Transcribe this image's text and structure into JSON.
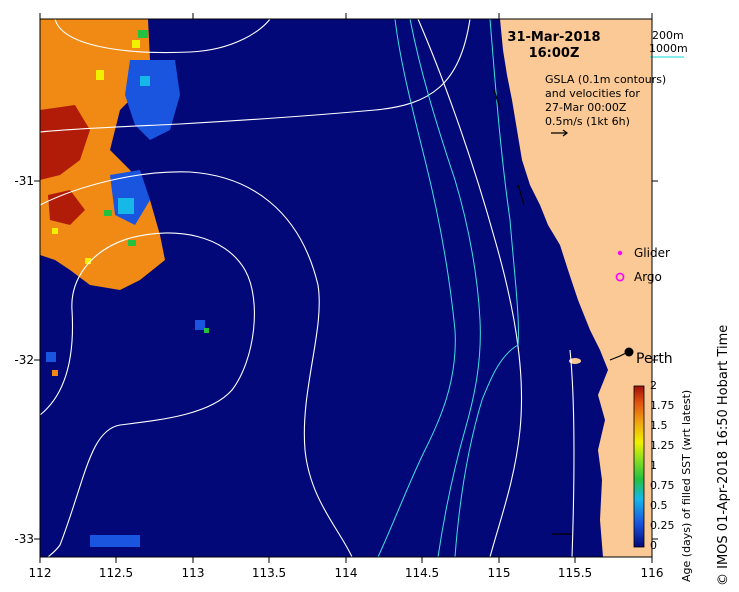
{
  "map": {
    "lon_ticks": [
      "112",
      "112.5",
      "113",
      "113.5",
      "114",
      "114.5",
      "115",
      "115.5",
      "116"
    ],
    "lat_ticks": [
      "-31",
      "-32",
      "-33"
    ],
    "colors": {
      "ocean": "#020878",
      "land": "#fbc995",
      "sst_orange": "#f08a14",
      "sst_red": "#b01c08",
      "sst_blue": "#1a55e0",
      "sst_cyan": "#16b8e8",
      "sst_green": "#24c040",
      "sst_yellow": "#f0f000",
      "gsla_contour": "#ffffff",
      "isobath": "#40e0e0"
    }
  },
  "header": {
    "date": "31-Mar-2018",
    "time": "16:00Z"
  },
  "isobath_legend": {
    "l200": "200m",
    "l1000": "1000m"
  },
  "note": {
    "line1": "GSLA (0.1m contours)",
    "line2": "and velocities for",
    "line3": "27-Mar 00:00Z",
    "line4": "0.5m/s (1kt 6h)"
  },
  "markers": {
    "glider": "Glider",
    "argo": "Argo",
    "city": "Perth"
  },
  "colorbar": {
    "ticks": [
      "2",
      "1.75",
      "1.5",
      "1.25",
      "1",
      "0.75",
      "0.5",
      "0.25",
      "0"
    ],
    "label": "Age (days) of filled SST (wrt latest)"
  },
  "credit": "© IMOS 01-Apr-2018 16:50 Hobart Time"
}
